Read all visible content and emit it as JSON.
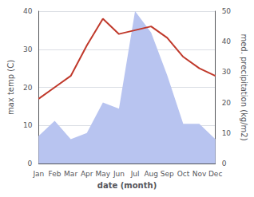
{
  "chart_data": {
    "type": "line",
    "xlabel": "date (month)",
    "ylabel": "max temp (C)",
    "y2label": "med. precipitation (kg/m2)",
    "categories": [
      "Jan",
      "Feb",
      "Mar",
      "Apr",
      "May",
      "Jun",
      "Jul",
      "Aug",
      "Sep",
      "Oct",
      "Nov",
      "Dec"
    ],
    "series": [
      {
        "type": "area",
        "axis": "y2",
        "color": "#b8c4f0",
        "values": [
          9,
          14,
          8,
          10,
          20,
          18,
          50,
          43,
          29,
          13,
          13,
          8
        ]
      },
      {
        "type": "line",
        "color": "#c0392b",
        "values": [
          17,
          20,
          23,
          31,
          38,
          34,
          35,
          36,
          33,
          28,
          25,
          23
        ]
      }
    ],
    "ylim": [
      0,
      40
    ],
    "yticks": [
      0,
      10,
      20,
      30,
      40
    ],
    "y2lim": [
      0,
      50
    ],
    "y2ticks": [
      0,
      10,
      20,
      30,
      40,
      50
    ],
    "grid": true
  }
}
